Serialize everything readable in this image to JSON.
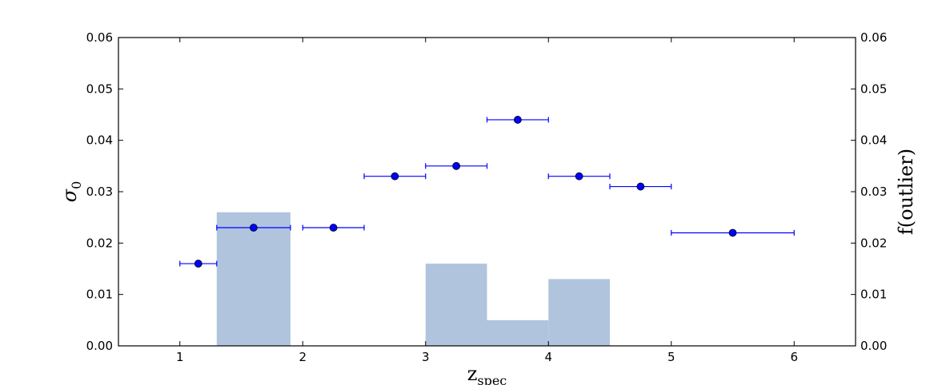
{
  "chart_data": {
    "type": "scatter",
    "title": "",
    "xlabel": {
      "main": "z",
      "sub": "spec"
    },
    "ylabel_left": {
      "main": "σ",
      "sub": "0"
    },
    "ylabel_right": "f(outlier)",
    "xlim": [
      0.5,
      6.5
    ],
    "ylim_left": [
      0,
      0.06
    ],
    "ylim_right": [
      0,
      0.06
    ],
    "x_ticks": [
      "1",
      "2",
      "3",
      "4",
      "5",
      "6"
    ],
    "y_ticks_left": [
      "0.00",
      "0.01",
      "0.02",
      "0.03",
      "0.04",
      "0.05",
      "0.06"
    ],
    "y_ticks_right": [
      "0.00",
      "0.01",
      "0.02",
      "0.03",
      "0.04",
      "0.05",
      "0.06"
    ],
    "grid": false,
    "colors": {
      "points": "#0000ff",
      "bars": "#b0c4de"
    },
    "histogram": {
      "axis": "right",
      "bins": [
        {
          "x0": 1.3,
          "x1": 1.9,
          "value": 0.026
        },
        {
          "x0": 3.0,
          "x1": 3.5,
          "value": 0.016
        },
        {
          "x0": 3.5,
          "x1": 4.0,
          "value": 0.005
        },
        {
          "x0": 4.0,
          "x1": 4.5,
          "value": 0.013
        }
      ]
    },
    "points": {
      "axis": "left",
      "data": [
        {
          "x": 1.15,
          "y": 0.016,
          "xmin": 1.0,
          "xmax": 1.3
        },
        {
          "x": 1.6,
          "y": 0.023,
          "xmin": 1.3,
          "xmax": 1.9
        },
        {
          "x": 2.25,
          "y": 0.023,
          "xmin": 2.0,
          "xmax": 2.5
        },
        {
          "x": 2.75,
          "y": 0.033,
          "xmin": 2.5,
          "xmax": 3.0
        },
        {
          "x": 3.25,
          "y": 0.035,
          "xmin": 3.0,
          "xmax": 3.5
        },
        {
          "x": 3.75,
          "y": 0.044,
          "xmin": 3.5,
          "xmax": 4.0
        },
        {
          "x": 4.25,
          "y": 0.033,
          "xmin": 4.0,
          "xmax": 4.5
        },
        {
          "x": 4.75,
          "y": 0.031,
          "xmin": 4.5,
          "xmax": 5.0
        },
        {
          "x": 5.5,
          "y": 0.022,
          "xmin": 5.0,
          "xmax": 6.0
        }
      ]
    }
  }
}
